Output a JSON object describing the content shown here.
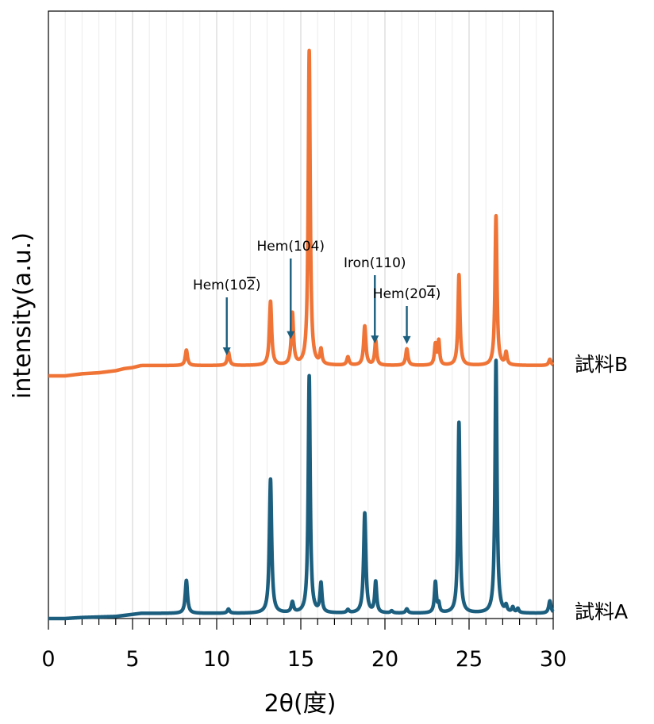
{
  "chart_data": {
    "type": "line",
    "title": "",
    "xlabel": "2θ(度)",
    "ylabel": "intensity(a.u.)",
    "xlim": [
      0,
      30
    ],
    "x_ticks": [
      0,
      5,
      10,
      15,
      20,
      25,
      30
    ],
    "x_tick_labels": [
      "0",
      "5",
      "10",
      "15",
      "20",
      "25",
      "30"
    ],
    "grid": "vertical",
    "colors": {
      "sample_a": "#1b5e7e",
      "sample_b": "#ef7436",
      "arrow": "#1b5e7e"
    },
    "series": [
      {
        "name": "試料A",
        "baseline": [
          [
            0,
            0.0
          ],
          [
            1,
            0.0
          ],
          [
            2,
            0.01
          ],
          [
            3,
            0.015
          ],
          [
            4,
            0.02
          ],
          [
            4.5,
            0.03
          ],
          [
            5,
            0.04
          ],
          [
            5.5,
            0.05
          ],
          [
            30,
            0.05
          ]
        ],
        "peaks": [
          [
            8.2,
            0.32,
            0.08
          ],
          [
            10.7,
            0.04,
            0.08
          ],
          [
            13.2,
            1.3,
            0.08
          ],
          [
            14.5,
            0.1,
            0.08
          ],
          [
            15.5,
            2.3,
            0.07
          ],
          [
            16.2,
            0.28,
            0.07
          ],
          [
            17.8,
            0.03,
            0.08
          ],
          [
            18.8,
            0.97,
            0.08
          ],
          [
            19.45,
            0.3,
            0.07
          ],
          [
            20.4,
            0.02,
            0.08
          ],
          [
            21.3,
            0.04,
            0.08
          ],
          [
            23.0,
            0.3,
            0.07
          ],
          [
            23.2,
            0.08,
            0.06
          ],
          [
            24.4,
            1.85,
            0.07
          ],
          [
            26.6,
            2.45,
            0.07
          ],
          [
            27.2,
            0.06,
            0.07
          ],
          [
            27.6,
            0.05,
            0.07
          ],
          [
            27.9,
            0.04,
            0.07
          ],
          [
            29.8,
            0.12,
            0.08
          ]
        ]
      },
      {
        "name": "試料B",
        "baseline": [
          [
            0,
            0.0
          ],
          [
            1,
            0.0
          ],
          [
            2,
            0.02
          ],
          [
            3,
            0.03
          ],
          [
            4,
            0.05
          ],
          [
            4.5,
            0.07
          ],
          [
            5,
            0.08
          ],
          [
            5.5,
            0.1
          ],
          [
            30,
            0.1
          ]
        ],
        "peaks": [
          [
            8.2,
            0.15,
            0.08
          ],
          [
            10.7,
            0.13,
            0.08
          ],
          [
            13.2,
            0.62,
            0.08
          ],
          [
            14.5,
            0.5,
            0.08
          ],
          [
            15.5,
            3.05,
            0.07
          ],
          [
            16.2,
            0.14,
            0.07
          ],
          [
            17.8,
            0.08,
            0.08
          ],
          [
            18.8,
            0.38,
            0.08
          ],
          [
            19.45,
            0.24,
            0.07
          ],
          [
            21.3,
            0.16,
            0.08
          ],
          [
            23.0,
            0.2,
            0.07
          ],
          [
            23.2,
            0.23,
            0.06
          ],
          [
            24.4,
            0.88,
            0.07
          ],
          [
            26.6,
            1.45,
            0.07
          ],
          [
            27.2,
            0.12,
            0.07
          ],
          [
            29.8,
            0.06,
            0.08
          ]
        ]
      }
    ],
    "annotations": [
      {
        "label": "Hem(10",
        "over": "2",
        "suffix": ")",
        "x": 10.6,
        "series": "試料B"
      },
      {
        "label": "Hem(104)",
        "x": 14.4,
        "series": "試料B"
      },
      {
        "label": "Iron(110)",
        "x": 19.4,
        "series": "試料B"
      },
      {
        "label": "Hem(20",
        "over": "4",
        "suffix": ")",
        "x": 21.3,
        "series": "試料B"
      }
    ]
  }
}
